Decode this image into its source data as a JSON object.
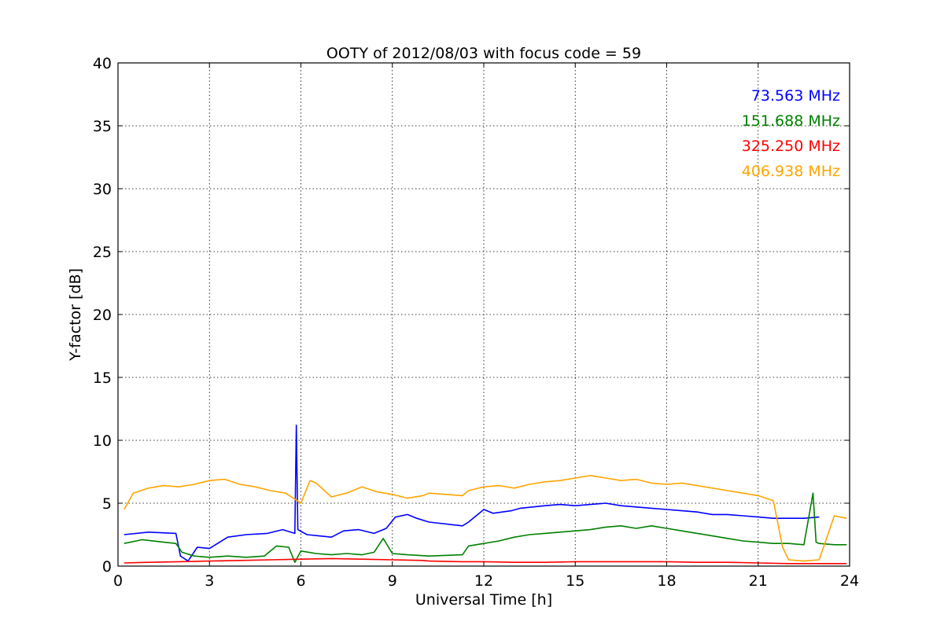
{
  "chart_data": {
    "type": "line",
    "title": "OOTY of 2012/08/03 with focus code = 59",
    "xlabel": "Universal Time [h]",
    "ylabel": "Y-factor [dB]",
    "xlim": [
      0,
      24
    ],
    "ylim": [
      0,
      40
    ],
    "xticks": [
      "0",
      "3",
      "6",
      "9",
      "12",
      "15",
      "18",
      "21",
      "24"
    ],
    "yticks": [
      "0",
      "5",
      "10",
      "15",
      "20",
      "25",
      "30",
      "35",
      "40"
    ],
    "grid": true,
    "legend_position": "top-right",
    "series": [
      {
        "name": "73.563 MHz",
        "color": "#0000ff",
        "x": [
          0.2,
          1.0,
          1.9,
          2.05,
          2.3,
          2.6,
          3.0,
          3.6,
          4.2,
          4.9,
          5.4,
          5.8,
          5.85,
          5.9,
          6.2,
          6.6,
          7.0,
          7.4,
          7.9,
          8.4,
          8.8,
          9.1,
          9.5,
          9.8,
          10.2,
          11.3,
          11.5,
          12.0,
          12.3,
          12.6,
          12.9,
          13.2,
          13.6,
          14.0,
          14.5,
          15.0,
          15.5,
          16.0,
          16.5,
          17.0,
          17.5,
          18.0,
          18.5,
          19.0,
          19.5,
          20.0,
          20.5,
          21.0,
          21.5,
          22.0,
          22.5,
          23.0
        ],
        "y": [
          2.5,
          2.7,
          2.6,
          0.8,
          0.4,
          1.5,
          1.4,
          2.3,
          2.5,
          2.6,
          2.9,
          2.6,
          11.2,
          2.9,
          2.5,
          2.4,
          2.3,
          2.8,
          2.9,
          2.6,
          3.0,
          3.9,
          4.1,
          3.8,
          3.5,
          3.2,
          3.5,
          4.5,
          4.2,
          4.3,
          4.4,
          4.6,
          4.7,
          4.8,
          4.9,
          4.8,
          4.9,
          5.0,
          4.8,
          4.7,
          4.6,
          4.5,
          4.4,
          4.3,
          4.1,
          4.1,
          4.0,
          3.9,
          3.8,
          3.8,
          3.8,
          3.9
        ]
      },
      {
        "name": "151.688 MHz",
        "color": "#008000",
        "x": [
          0.2,
          0.8,
          1.5,
          1.9,
          2.1,
          2.5,
          3.0,
          3.6,
          4.2,
          4.8,
          5.2,
          5.6,
          5.8,
          6.0,
          6.5,
          7.0,
          7.5,
          8.0,
          8.4,
          8.7,
          9.0,
          9.5,
          10.2,
          11.3,
          11.5,
          12.0,
          12.5,
          13.0,
          13.5,
          14.0,
          14.5,
          15.0,
          15.5,
          16.0,
          16.5,
          17.0,
          17.5,
          18.0,
          18.5,
          19.0,
          19.5,
          20.0,
          20.5,
          21.0,
          21.5,
          22.0,
          22.5,
          22.8,
          22.9,
          23.0,
          23.5,
          23.9
        ],
        "y": [
          1.8,
          2.1,
          1.9,
          1.8,
          1.1,
          0.8,
          0.7,
          0.8,
          0.7,
          0.8,
          1.6,
          1.5,
          0.3,
          1.2,
          1.0,
          0.9,
          1.0,
          0.9,
          1.1,
          2.2,
          1.0,
          0.9,
          0.8,
          0.9,
          1.6,
          1.8,
          2.0,
          2.3,
          2.5,
          2.6,
          2.7,
          2.8,
          2.9,
          3.1,
          3.2,
          3.0,
          3.2,
          3.0,
          2.8,
          2.6,
          2.4,
          2.2,
          2.0,
          1.9,
          1.8,
          1.8,
          1.7,
          5.8,
          1.9,
          1.8,
          1.7,
          1.7
        ]
      },
      {
        "name": "325.250 MHz",
        "color": "#ff0000",
        "x": [
          0.2,
          1.0,
          2.0,
          3.0,
          4.0,
          5.0,
          6.0,
          7.0,
          8.0,
          9.0,
          10.0,
          10.2,
          11.3,
          12.0,
          13.0,
          14.0,
          15.0,
          16.0,
          17.0,
          18.0,
          19.0,
          20.0,
          21.0,
          22.0,
          23.0,
          23.9
        ],
        "y": [
          0.25,
          0.3,
          0.35,
          0.4,
          0.45,
          0.5,
          0.55,
          0.6,
          0.55,
          0.5,
          0.45,
          0.4,
          0.35,
          0.35,
          0.3,
          0.3,
          0.35,
          0.35,
          0.35,
          0.35,
          0.3,
          0.3,
          0.25,
          0.2,
          0.2,
          0.2
        ]
      },
      {
        "name": "406.938 MHz",
        "color": "#ffa500",
        "x": [
          0.2,
          0.5,
          1.0,
          1.5,
          2.0,
          2.5,
          3.0,
          3.5,
          4.0,
          4.5,
          5.0,
          5.5,
          6.0,
          6.3,
          6.5,
          7.0,
          7.5,
          8.0,
          8.5,
          9.0,
          9.5,
          10.0,
          10.2,
          11.3,
          11.5,
          12.0,
          12.5,
          13.0,
          13.5,
          14.0,
          14.5,
          15.0,
          15.5,
          16.0,
          16.5,
          17.0,
          17.5,
          18.0,
          18.5,
          19.0,
          19.5,
          20.0,
          20.5,
          21.0,
          21.5,
          21.8,
          22.0,
          22.5,
          23.0,
          23.5,
          23.9
        ],
        "y": [
          4.5,
          5.8,
          6.2,
          6.4,
          6.3,
          6.5,
          6.8,
          6.9,
          6.5,
          6.3,
          6.0,
          5.8,
          5.0,
          6.8,
          6.6,
          5.5,
          5.8,
          6.3,
          5.9,
          5.7,
          5.4,
          5.6,
          5.8,
          5.6,
          6.0,
          6.3,
          6.4,
          6.2,
          6.5,
          6.7,
          6.8,
          7.0,
          7.2,
          7.0,
          6.8,
          6.9,
          6.6,
          6.5,
          6.6,
          6.4,
          6.2,
          6.0,
          5.8,
          5.6,
          5.2,
          1.5,
          0.5,
          0.4,
          0.5,
          4.0,
          3.8
        ]
      }
    ]
  }
}
